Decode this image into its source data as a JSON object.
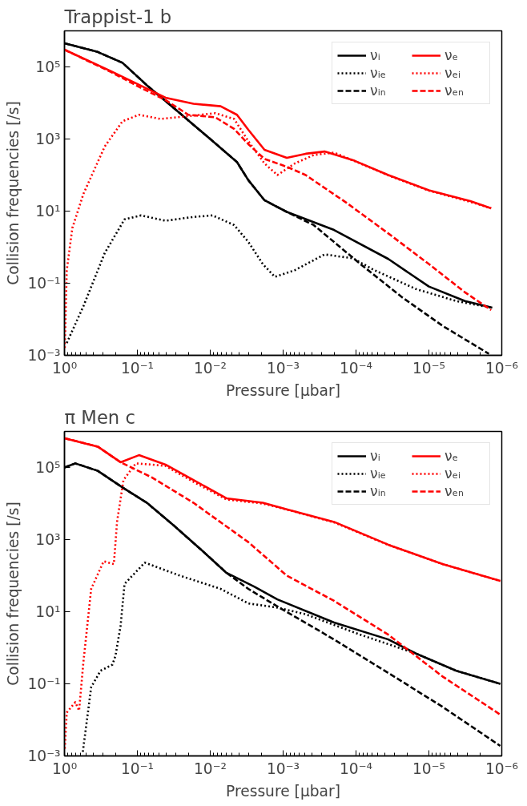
{
  "chart_data": [
    {
      "type": "line",
      "title": "Trappist-1 b",
      "xlabel": "Pressure [μbar]",
      "ylabel": "Collision frequencies [/s]",
      "log": "xy",
      "xlim": [
        1,
        1e-06
      ],
      "ylim": [
        0.001,
        1000000.0
      ],
      "xticks": [
        {
          "value": 1,
          "label": "10⁰"
        },
        {
          "value": 0.1,
          "label": "10⁻¹"
        },
        {
          "value": 0.01,
          "label": "10⁻²"
        },
        {
          "value": 0.001,
          "label": "10⁻³"
        },
        {
          "value": 0.0001,
          "label": "10⁻⁴"
        },
        {
          "value": 1e-05,
          "label": "10⁻⁵"
        },
        {
          "value": 1e-06,
          "label": "10⁻⁶"
        }
      ],
      "yticks": [
        {
          "value": 0.001,
          "label": "10⁻³"
        },
        {
          "value": 0.1,
          "label": "10⁻¹"
        },
        {
          "value": 10,
          "label": "10¹"
        },
        {
          "value": 1000,
          "label": "10³"
        },
        {
          "value": 100000,
          "label": "10⁵"
        }
      ],
      "legend": "top right",
      "grid": false,
      "series": [
        {
          "name": "νᵢ",
          "color": "#000000",
          "line_style": "solid",
          "x": [
            1,
            0.35,
            0.16,
            0.074,
            0.032,
            0.01,
            0.0043,
            0.003,
            0.0018,
            0.00089,
            0.0002,
            3.6e-05,
            1e-05,
            3.2e-06,
            1.35e-06
          ],
          "values": [
            450000.0,
            260000.0,
            130000.0,
            31000.0,
            7400.0,
            1000.0,
            230,
            72,
            20,
            9.5,
            3.0,
            0.47,
            0.081,
            0.032,
            0.021
          ]
        },
        {
          "name": "νᵢₑ",
          "color": "#000000",
          "line_style": "dotted",
          "x": [
            0.93,
            0.55,
            0.28,
            0.15,
            0.089,
            0.041,
            0.017,
            0.0093,
            0.0047,
            0.003,
            0.0019,
            0.0013,
            0.00069,
            0.00027,
            0.00011,
            5.6e-05,
            1.5e-05,
            4.2e-06,
            1.4e-06
          ],
          "values": [
            0.0022,
            0.023,
            0.69,
            5.9,
            7.6,
            5.4,
            6.9,
            7.6,
            4.1,
            1.4,
            0.34,
            0.15,
            0.23,
            0.63,
            0.49,
            0.23,
            0.069,
            0.032,
            0.021
          ]
        },
        {
          "name": "νᵢₙ",
          "color": "#000000",
          "line_style": "dashed",
          "x": [
            1,
            0.35,
            0.16,
            0.074,
            0.032,
            0.01,
            0.0043,
            0.003,
            0.0018,
            0.00089,
            0.00038,
            8.7e-05,
            2.3e-05,
            6.5e-06,
            1.5e-06
          ],
          "values": [
            450000.0,
            260000.0,
            130000.0,
            31000.0,
            7400.0,
            1000.0,
            230,
            72,
            20,
            9.5,
            4.1,
            0.34,
            0.04,
            0.0066,
            0.0011
          ]
        },
        {
          "name": "νₑ",
          "color": "#ff0000",
          "line_style": "solid",
          "x": [
            1,
            0.23,
            0.041,
            0.017,
            0.0072,
            0.0043,
            0.003,
            0.0018,
            0.00089,
            0.00049,
            0.00027,
            0.000105,
            3.6e-05,
            1e-05,
            2.7e-06,
            1.4e-06
          ],
          "values": [
            300000.0,
            76000.0,
            14000.0,
            9500.0,
            8100.0,
            4700.0,
            1800.0,
            500,
            300,
            390,
            450,
            250,
            100,
            38,
            19,
            12
          ]
        },
        {
          "name": "νₑᵢ",
          "color": "#ff0000",
          "line_style": "dotted",
          "x": [
            0.99,
            0.93,
            0.78,
            0.55,
            0.28,
            0.16,
            0.095,
            0.048,
            0.02,
            0.0085,
            0.0047,
            0.003,
            0.0018,
            0.0012,
            0.00069,
            0.00038,
            0.0002,
            0.000105,
            3.6e-05,
            1e-05,
            2.7e-06,
            1.4e-06
          ],
          "values": [
            0.0016,
            0.23,
            3.4,
            30,
            620,
            3100,
            4700,
            3600,
            4300,
            5200,
            3600,
            870,
            210,
            100,
            210,
            360,
            420,
            245,
            98,
            37,
            18,
            12
          ]
        },
        {
          "name": "νₑₙ",
          "color": "#ff0000",
          "line_style": "dashed",
          "x": [
            1,
            0.23,
            0.095,
            0.041,
            0.02,
            0.0085,
            0.0047,
            0.003,
            0.0018,
            0.00089,
            0.00049,
            0.000135,
            3.6e-05,
            1e-05,
            3.2e-06,
            1.4e-06
          ],
          "values": [
            300000.0,
            72000.0,
            28000.0,
            12000.0,
            4700.0,
            4000.0,
            1900.0,
            720,
            280,
            170,
            100,
            17,
            2.4,
            0.34,
            0.056,
            0.018
          ]
        }
      ]
    },
    {
      "type": "line",
      "title": "π Men c",
      "xlabel": "Pressure [μbar]",
      "ylabel": "Collision frequencies [/s]",
      "log": "xy",
      "xlim": [
        1,
        1e-06
      ],
      "ylim": [
        0.001,
        1000000.0
      ],
      "xticks": [
        {
          "value": 1,
          "label": "10⁰"
        },
        {
          "value": 0.1,
          "label": "10⁻¹"
        },
        {
          "value": 0.01,
          "label": "10⁻²"
        },
        {
          "value": 0.001,
          "label": "10⁻³"
        },
        {
          "value": 0.0001,
          "label": "10⁻⁴"
        },
        {
          "value": 1e-05,
          "label": "10⁻⁵"
        },
        {
          "value": 1e-06,
          "label": "10⁻⁶"
        }
      ],
      "yticks": [
        {
          "value": 0.001,
          "label": "10⁻³"
        },
        {
          "value": 0.1,
          "label": "10⁻¹"
        },
        {
          "value": 10,
          "label": "10¹"
        },
        {
          "value": 1000,
          "label": "10³"
        },
        {
          "value": 100000,
          "label": "10⁵"
        }
      ],
      "legend": "top right",
      "grid": false,
      "series": [
        {
          "name": "νᵢ",
          "color": "#000000",
          "line_style": "solid",
          "x": [
            1,
            0.71,
            0.35,
            0.16,
            0.074,
            0.032,
            0.013,
            0.006,
            0.0025,
            0.0012,
            0.0002,
            3.6e-05,
            1.5e-05,
            4.2e-06,
            1.05e-06
          ],
          "values": [
            100000.0,
            130000.0,
            81000.0,
            28000.0,
            10500.0,
            2500.0,
            500,
            120,
            50,
            22,
            5.0,
            1.7,
            0.69,
            0.23,
            0.1
          ]
        },
        {
          "name": "νᵢₑ",
          "color": "#000000",
          "line_style": "dotted",
          "x": [
            0.56,
            0.43,
            0.32,
            0.22,
            0.2,
            0.17,
            0.15,
            0.079,
            0.026,
            0.0072,
            0.003,
            0.0012,
            0.00049,
            8.7e-05,
            1.5e-05,
            4.2e-06,
            1.05e-06
          ],
          "values": [
            0.0013,
            0.081,
            0.23,
            0.34,
            0.59,
            4.0,
            59,
            230,
            100,
            43,
            17,
            13,
            8.5,
            2.3,
            0.69,
            0.23,
            0.1
          ]
        },
        {
          "name": "νᵢₙ",
          "color": "#000000",
          "line_style": "dashed",
          "x": [
            1,
            0.71,
            0.35,
            0.16,
            0.074,
            0.032,
            0.013,
            0.006,
            0.003,
            0.0012,
            0.0002,
            3.6e-05,
            6.5e-06,
            1.05e-06
          ],
          "values": [
            100000.0,
            130000.0,
            81000.0,
            28000.0,
            10500.0,
            2500.0,
            500,
            120,
            43,
            14,
            1.7,
            0.2,
            0.023,
            0.0019
          ]
        },
        {
          "name": "νₑ",
          "color": "#ff0000",
          "line_style": "solid",
          "x": [
            1,
            0.35,
            0.17,
            0.095,
            0.041,
            0.017,
            0.006,
            0.0019,
            0.00089,
            0.0002,
            3.6e-05,
            6.5e-06,
            1.05e-06
          ],
          "values": [
            650000.0,
            380000.0,
            140000.0,
            220000.0,
            120000.0,
            45000.0,
            14000.0,
            10500.0,
            6900.0,
            3100.0,
            720,
            210,
            72
          ]
        },
        {
          "name": "νₑᵢ",
          "color": "#ff0000",
          "line_style": "dotted",
          "x": [
            0.99,
            0.93,
            0.71,
            0.63,
            0.55,
            0.43,
            0.29,
            0.21,
            0.19,
            0.155,
            0.105,
            0.062,
            0.041,
            0.017,
            0.006,
            0.0019,
            0.00089,
            0.0002,
            3.6e-05,
            6.5e-06,
            1.05e-06
          ],
          "values": [
            0.0016,
            0.016,
            0.031,
            0.018,
            0.4,
            43,
            250,
            210,
            3100.0,
            45000.0,
            130000.0,
            120000.0,
            110000.0,
            40000.0,
            13000.0,
            10000.0,
            6800.0,
            3000.0,
            710,
            210,
            71
          ]
        },
        {
          "name": "νₑₙ",
          "color": "#ff0000",
          "line_style": "dashed",
          "x": [
            1,
            0.35,
            0.17,
            0.062,
            0.017,
            0.003,
            0.00089,
            0.0002,
            3.6e-05,
            6.5e-06,
            1.05e-06
          ],
          "values": [
            650000.0,
            380000.0,
            140000.0,
            52000.0,
            10500.0,
            850,
            100,
            20,
            2.3,
            0.16,
            0.014
          ]
        }
      ]
    }
  ]
}
